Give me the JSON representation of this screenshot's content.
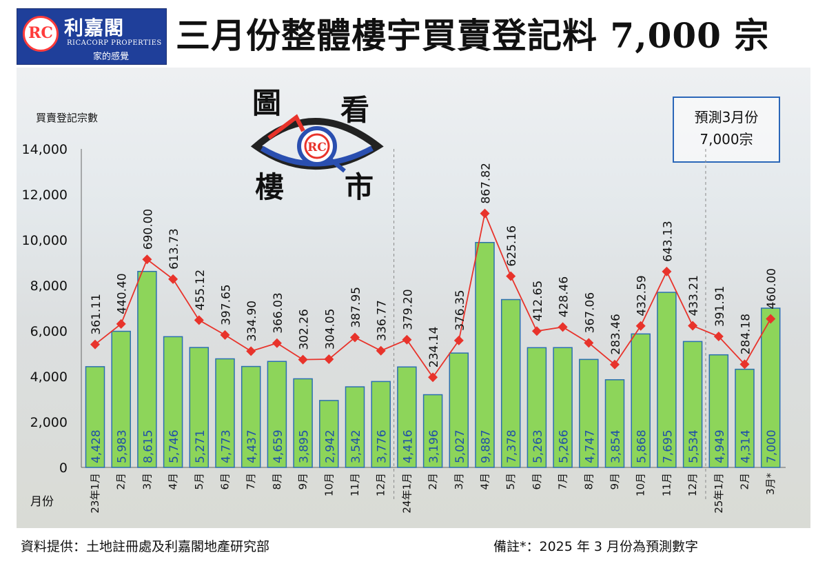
{
  "logo": {
    "name": "利嘉閣",
    "english": "RICACORP PROPERTIES",
    "slogan": "家的感覺",
    "mark": "RC"
  },
  "title": "三月份整體樓宇買賣登記料 7,000 宗",
  "badge": {
    "chars": [
      "圖",
      "看",
      "樓",
      "市"
    ],
    "mark": "RC"
  },
  "prediction_box": {
    "line1": "預測3月份",
    "line2": "7,000宗"
  },
  "footer": {
    "source": "資料提供：土地註冊處及利嘉閣地產研究部",
    "note": "備註*：2025 年 3 月份為預測數字"
  },
  "colors": {
    "bar": "#8dd55a",
    "bar_stroke": "#2b6fb0",
    "line": "#e8332b",
    "label_in_bar": "#1f4fa8",
    "title_blue": "#1f3f9a"
  },
  "chart_data": {
    "type": "bar",
    "ylabel": "買賣登記宗數",
    "xlabel": "月份",
    "ylim": [
      0,
      14000
    ],
    "yticks": [
      "0",
      "2,000",
      "4,000",
      "6,000",
      "8,000",
      "10,000",
      "12,000",
      "14,000"
    ],
    "categories": [
      "23年1月",
      "2月",
      "3月",
      "4月",
      "5月",
      "6月",
      "7月",
      "8月",
      "9月",
      "10月",
      "11月",
      "12月",
      "24年1月",
      "2月",
      "3月",
      "4月",
      "5月",
      "6月",
      "7月",
      "8月",
      "9月",
      "10月",
      "11月",
      "12月",
      "25年1月",
      "2月",
      "3月*"
    ],
    "series": [
      {
        "type": "bar",
        "values": [
          4428,
          5983,
          8615,
          5746,
          5271,
          4773,
          4437,
          4659,
          3895,
          2942,
          3542,
          3776,
          4416,
          3196,
          5027,
          9887,
          7378,
          5263,
          5266,
          4747,
          3854,
          5868,
          7695,
          5534,
          4949,
          4314,
          7000
        ],
        "labels": [
          "4,428",
          "5,983",
          "8,615",
          "5,746",
          "5,271",
          "4,773",
          "4,437",
          "4,659",
          "3,895",
          "2,942",
          "3,542",
          "3,776",
          "4,416",
          "3,196",
          "5,027",
          "9,887",
          "7,378",
          "5,263",
          "5,266",
          "4,747",
          "3,854",
          "5,868",
          "7,695",
          "5,534",
          "4,949",
          "4,314",
          "7,000"
        ]
      },
      {
        "type": "line",
        "values": [
          361.11,
          440.4,
          690.0,
          613.73,
          455.12,
          397.65,
          334.9,
          366.03,
          302.26,
          304.05,
          387.95,
          336.77,
          379.2,
          234.14,
          376.35,
          867.82,
          625.16,
          412.65,
          428.46,
          367.06,
          283.46,
          432.59,
          643.13,
          433.21,
          391.91,
          284.18,
          460.0
        ],
        "labels": [
          "361.11",
          "440.40",
          "690.00",
          "613.73",
          "455.12",
          "397.65",
          "334.90",
          "366.03",
          "302.26",
          "304.05",
          "387.95",
          "336.77",
          "379.20",
          "234.14",
          "376.35",
          "867.82",
          "625.16",
          "412.65",
          "428.46",
          "367.06",
          "283.46",
          "432.59",
          "643.13",
          "433.21",
          "391.91",
          "284.18",
          "460.00"
        ]
      }
    ],
    "year_dividers_after": [
      11,
      23
    ]
  }
}
